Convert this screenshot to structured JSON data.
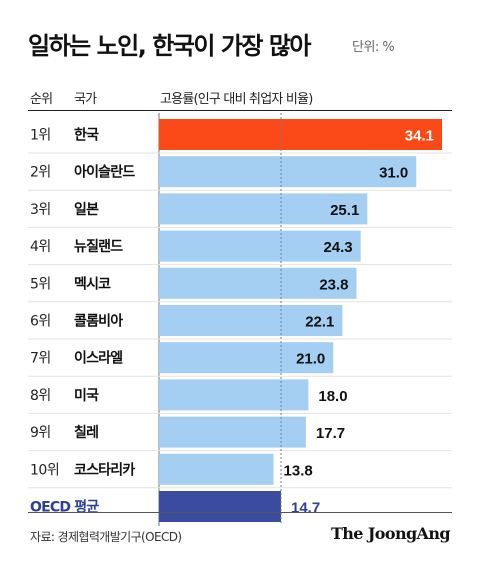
{
  "header": {
    "title": "일하는 노인, 한국이 가장 많아",
    "unit": "단위: %"
  },
  "columns": {
    "rank": "순위",
    "country": "국가",
    "metric": "고용률(인구 대비 취업자 비율)"
  },
  "chart_data": {
    "type": "bar",
    "orientation": "horizontal",
    "ranks": [
      "1위",
      "2위",
      "3위",
      "4위",
      "5위",
      "6위",
      "7위",
      "8위",
      "9위",
      "10위",
      ""
    ],
    "categories": [
      "한국",
      "아이슬란드",
      "일본",
      "뉴질랜드",
      "멕시코",
      "콜롬비아",
      "이스라엘",
      "미국",
      "칠레",
      "코스타리카",
      "OECD 평균"
    ],
    "values": [
      34.1,
      31.0,
      25.1,
      24.3,
      23.8,
      22.1,
      21.0,
      18.0,
      17.7,
      13.8,
      14.7
    ],
    "value_labels": [
      "34.1",
      "31.0",
      "25.1",
      "24.3",
      "23.8",
      "22.1",
      "21.0",
      "18.0",
      "17.7",
      "13.8",
      "14.7"
    ],
    "reference_line_value": 14.7,
    "xlim": [
      0,
      34.1
    ],
    "grid": false,
    "colors": {
      "highlight": "#fb4a17",
      "default": "#a4cef2",
      "average": "#3b4ba0",
      "average_text": "#2e3f94",
      "reference_line": "#6f7f99"
    }
  },
  "footer": {
    "source": "자료: 경제협력개발기구(OECD)",
    "logo": "The JoongAng"
  }
}
